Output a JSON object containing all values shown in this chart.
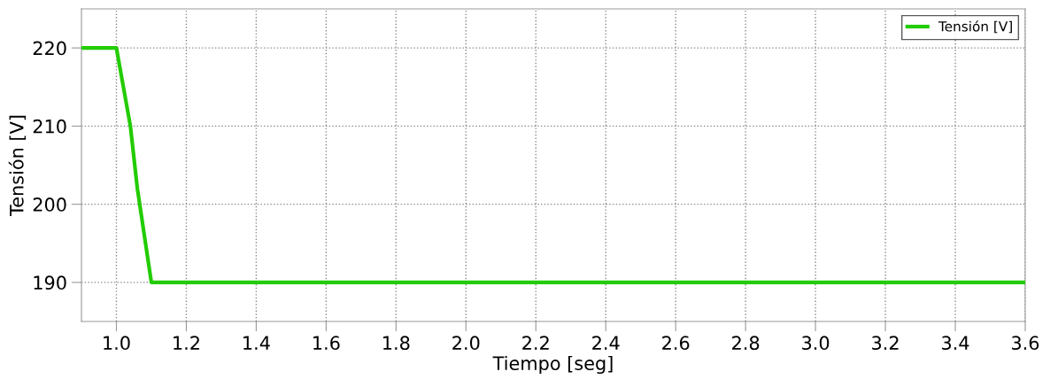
{
  "chart_data": {
    "type": "line",
    "xlabel": "Tiempo [seg]",
    "ylabel": "Tensión [V]",
    "series": [
      {
        "name": "Tensión [V]",
        "color": "#22cc00",
        "x": [
          0.9,
          1.0,
          1.02,
          1.04,
          1.06,
          1.08,
          1.1,
          1.5,
          2.0,
          2.5,
          3.0,
          3.6
        ],
        "values": [
          220,
          220,
          215,
          210,
          202,
          196,
          190,
          190,
          190,
          190,
          190,
          190
        ]
      }
    ],
    "xlim": [
      0.9,
      3.6
    ],
    "xticks": [
      {
        "value": 1.0,
        "label": "1.0"
      },
      1.2,
      1.4,
      1.6,
      1.8,
      {
        "value": 2.0,
        "label": "2.0"
      },
      2.2,
      2.4,
      2.6,
      2.8,
      {
        "value": 3.0,
        "label": "3.0"
      },
      3.2,
      3.4,
      3.6
    ],
    "ylim": [
      185,
      225
    ],
    "yticks": [
      190,
      200,
      210,
      220
    ],
    "grid": true,
    "legend": "top right",
    "line_style": "solid",
    "marker": "none"
  }
}
